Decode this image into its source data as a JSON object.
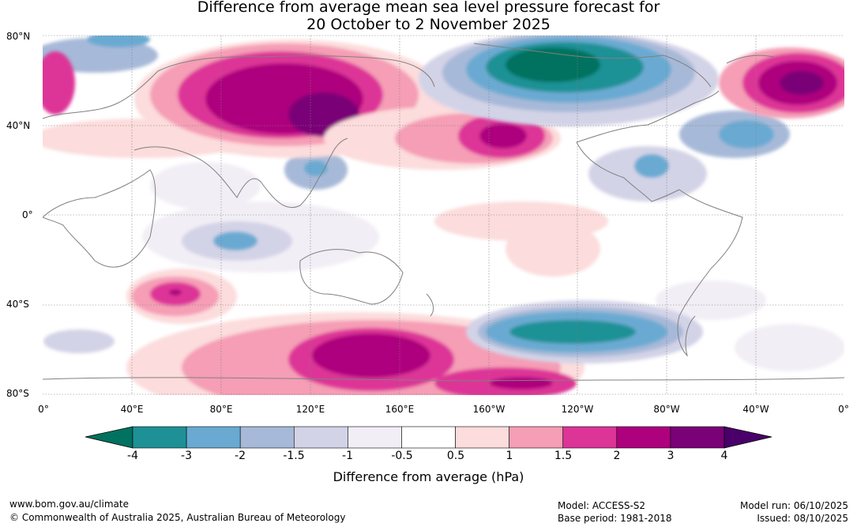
{
  "title": {
    "line1": "Difference from average mean sea level pressure forecast for",
    "line2": "20 October to 2 November 2025"
  },
  "map": {
    "lat_labels": [
      "80°N",
      "40°N",
      "0°",
      "40°S",
      "80°S"
    ],
    "lon_labels": [
      "0°",
      "40°E",
      "80°E",
      "120°E",
      "160°E",
      "160°W",
      "120°W",
      "80°W",
      "40°W",
      "0°"
    ]
  },
  "colorbar": {
    "ticks": [
      "-4",
      "-3",
      "-2",
      "-1.5",
      "-1",
      "-0.5",
      "0.5",
      "1",
      "1.5",
      "2",
      "3",
      "4"
    ],
    "colors": [
      "#1e9196",
      "#6aaad2",
      "#a7b9d8",
      "#d3d3e7",
      "#f2eef5",
      "#ffffff",
      "#fcdcdc",
      "#f59eb6",
      "#dd3497",
      "#ae017e",
      "#7a0177"
    ],
    "under_color": "#00725f",
    "over_color": "#49006a",
    "label": "Difference from average (hPa)"
  },
  "footer": {
    "website": "www.bom.gov.au/climate",
    "copyright": "© Commonwealth of Australia 2025, Australian Bureau of Meteorology",
    "model": "Model: ACCESS-S2",
    "base_period": "Base period: 1981-2018",
    "model_run": "Model run: 06/10/2025",
    "issued": "Issued: 08/10/2025"
  }
}
